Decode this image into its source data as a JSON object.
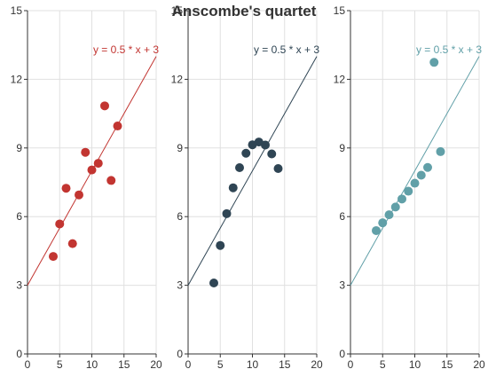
{
  "chart_data": {
    "type": "scatter",
    "title": "Anscombe's quartet",
    "grid": true,
    "panels": [
      {
        "name": "panel-1",
        "color": "#c23531",
        "xlim": [
          0,
          20
        ],
        "ylim": [
          0,
          15
        ],
        "x_ticks": [
          "0",
          "5",
          "10",
          "15",
          "20"
        ],
        "y_ticks": [
          "0",
          "3",
          "6",
          "9",
          "12",
          "15"
        ],
        "trend_label": "y = 0.5 * x + 3",
        "trend_line": {
          "slope": 0.5,
          "intercept": 3
        },
        "points": [
          [
            10,
            8.04
          ],
          [
            8,
            6.95
          ],
          [
            13,
            7.58
          ],
          [
            9,
            8.81
          ],
          [
            11,
            8.33
          ],
          [
            14,
            9.96
          ],
          [
            6,
            7.24
          ],
          [
            4,
            4.26
          ],
          [
            12,
            10.84
          ],
          [
            7,
            4.82
          ],
          [
            5,
            5.68
          ]
        ]
      },
      {
        "name": "panel-2",
        "color": "#2f4554",
        "xlim": [
          0,
          20
        ],
        "ylim": [
          0,
          15
        ],
        "x_ticks": [
          "0",
          "5",
          "10",
          "15",
          "20"
        ],
        "y_ticks": [
          "0",
          "3",
          "6",
          "9",
          "12",
          "15"
        ],
        "trend_label": "y = 0.5 * x + 3",
        "trend_line": {
          "slope": 0.5,
          "intercept": 3
        },
        "points": [
          [
            10,
            9.14
          ],
          [
            8,
            8.14
          ],
          [
            13,
            8.74
          ],
          [
            9,
            8.77
          ],
          [
            11,
            9.26
          ],
          [
            14,
            8.1
          ],
          [
            6,
            6.13
          ],
          [
            4,
            3.1
          ],
          [
            12,
            9.13
          ],
          [
            7,
            7.26
          ],
          [
            5,
            4.74
          ]
        ]
      },
      {
        "name": "panel-3",
        "color": "#61a0a8",
        "xlim": [
          0,
          20
        ],
        "ylim": [
          0,
          15
        ],
        "x_ticks": [
          "0",
          "5",
          "10",
          "15",
          "20"
        ],
        "y_ticks": [
          "0",
          "3",
          "6",
          "9",
          "12",
          "15"
        ],
        "trend_label": "y = 0.5 * x + 3",
        "trend_line": {
          "slope": 0.5,
          "intercept": 3
        },
        "points": [
          [
            10,
            7.46
          ],
          [
            8,
            6.77
          ],
          [
            13,
            12.74
          ],
          [
            9,
            7.11
          ],
          [
            11,
            7.81
          ],
          [
            14,
            8.84
          ],
          [
            6,
            6.08
          ],
          [
            4,
            5.39
          ],
          [
            12,
            8.15
          ],
          [
            7,
            6.42
          ],
          [
            5,
            5.73
          ]
        ]
      }
    ]
  }
}
